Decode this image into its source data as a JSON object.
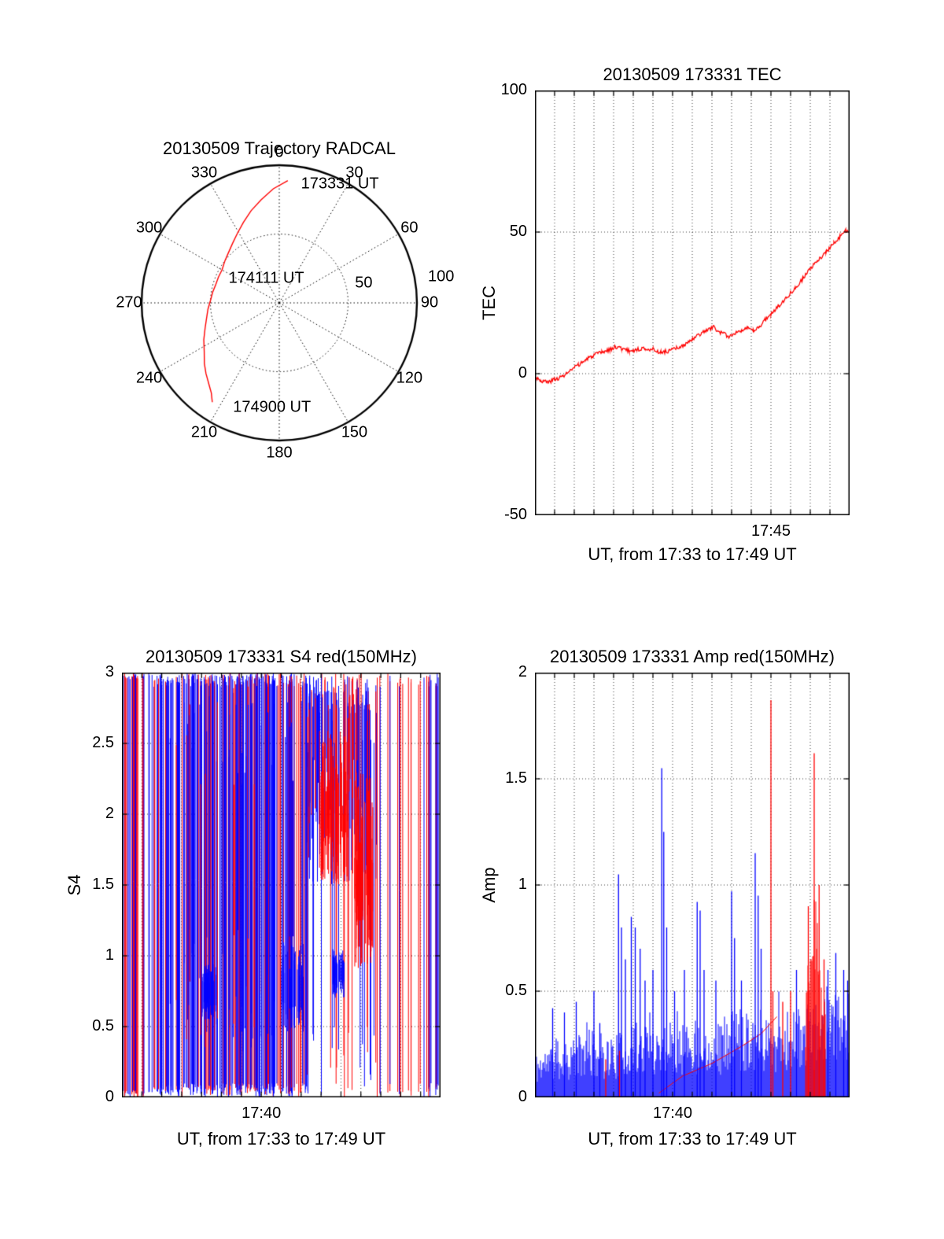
{
  "chart_data": [
    {
      "type": "polar-line",
      "title": "20130509 Trajectory RADCAL",
      "azimuth_ticks_deg": [
        0,
        30,
        60,
        90,
        120,
        150,
        180,
        210,
        240,
        270,
        300,
        330
      ],
      "radial_ticks": [
        {
          "value": 50,
          "label": "50",
          "label_az_deg": 77,
          "label_r": 63
        },
        {
          "value": 100,
          "label": "100",
          "label_az_deg": 81,
          "label_r": 119
        }
      ],
      "rmax": 100,
      "line_color": "#ff0000",
      "annotations": [
        {
          "text": "173331 UT",
          "az_deg": 27,
          "r": 97
        },
        {
          "text": "174111 UT",
          "az_deg": 332,
          "r": 20
        },
        {
          "text": "174900 UT",
          "az_deg": 184,
          "r": 76
        }
      ],
      "track_az_r": [
        [
          4,
          89
        ],
        [
          357,
          83
        ],
        [
          350,
          76
        ],
        [
          343,
          70
        ],
        [
          336,
          64
        ],
        [
          329,
          59
        ],
        [
          322,
          55
        ],
        [
          315,
          52
        ],
        [
          308,
          50
        ],
        [
          300,
          48
        ],
        [
          293,
          48
        ],
        [
          286,
          48
        ],
        [
          279,
          49
        ],
        [
          272,
          50
        ],
        [
          265,
          52
        ],
        [
          258,
          54
        ],
        [
          251,
          57
        ],
        [
          244,
          61
        ],
        [
          237,
          65
        ],
        [
          231,
          70
        ],
        [
          226,
          74
        ],
        [
          221,
          78
        ],
        [
          217,
          82
        ],
        [
          214,
          87
        ]
      ]
    },
    {
      "type": "line",
      "title": "20130509 173331 TEC",
      "ylabel": "TEC",
      "xlabel": "UT, from 17:33 to 17:49 UT",
      "ylim": [
        -50,
        100
      ],
      "yticks": [
        100,
        50,
        0,
        -50
      ],
      "grid_y": [
        0,
        50
      ],
      "x_start": "17:33",
      "x_end": "17:49",
      "x_range_minutes": 16,
      "xticks": [
        {
          "minute": 12,
          "label": "17:45"
        }
      ],
      "line_color": "#ff0000",
      "noise": 0.7,
      "seed": 3,
      "series_t_v": [
        [
          0,
          -1
        ],
        [
          0.3,
          -2.5
        ],
        [
          0.7,
          -3
        ],
        [
          1,
          -2
        ],
        [
          1.4,
          -1
        ],
        [
          1.8,
          1
        ],
        [
          2.2,
          3
        ],
        [
          2.6,
          5
        ],
        [
          3,
          6.5
        ],
        [
          3.4,
          7.5
        ],
        [
          3.8,
          8.5
        ],
        [
          4.1,
          9.5
        ],
        [
          4.4,
          9
        ],
        [
          4.8,
          8
        ],
        [
          5.2,
          8.5
        ],
        [
          5.6,
          9
        ],
        [
          6,
          8.5
        ],
        [
          6.4,
          7.5
        ],
        [
          6.8,
          8
        ],
        [
          7.2,
          9
        ],
        [
          7.6,
          10
        ],
        [
          8,
          12
        ],
        [
          8.4,
          14
        ],
        [
          8.8,
          15.5
        ],
        [
          9.1,
          16.5
        ],
        [
          9.3,
          15
        ],
        [
          9.6,
          14
        ],
        [
          9.9,
          13
        ],
        [
          10.2,
          14.5
        ],
        [
          10.5,
          15.5
        ],
        [
          10.8,
          16
        ],
        [
          11.1,
          15
        ],
        [
          11.4,
          16.5
        ],
        [
          11.7,
          19
        ],
        [
          12,
          21
        ],
        [
          12.4,
          24
        ],
        [
          12.8,
          27
        ],
        [
          13.2,
          30
        ],
        [
          13.6,
          33.5
        ],
        [
          14,
          37
        ],
        [
          14.4,
          40
        ],
        [
          14.8,
          43
        ],
        [
          15.2,
          46
        ],
        [
          15.5,
          48.5
        ],
        [
          15.8,
          50.5
        ],
        [
          16,
          50
        ]
      ]
    },
    {
      "type": "vertical-lines",
      "title": "20130509 173331 S4 red(150MHz)",
      "ylabel": "S4",
      "xlabel": "UT, from 17:33 to 17:49 UT",
      "ylim": [
        0,
        3
      ],
      "yticks": [
        3,
        2.5,
        2,
        1.5,
        1,
        0.5,
        0
      ],
      "grid_y": [
        0.5,
        1,
        1.5,
        2,
        2.5
      ],
      "x_start": "17:33",
      "x_end": "17:49",
      "x_range_minutes": 16,
      "xticks": [
        {
          "minute": 7,
          "label": "17:40"
        }
      ],
      "colors": {
        "red": "#ff0000",
        "blue": "#0000ff"
      },
      "seed": 7,
      "segments": [
        {
          "x0": 0.0,
          "x1": 0.06,
          "count": 26,
          "red": 0.6,
          "ymin": [
            0,
            0.05
          ],
          "ymax": [
            2.95,
            3
          ]
        },
        {
          "x0": 0.06,
          "x1": 0.1,
          "count": 10,
          "red": 0.2,
          "ymin": [
            0,
            0.05
          ],
          "ymax": [
            2.95,
            3
          ]
        },
        {
          "x0": 0.1,
          "x1": 0.34,
          "count": 110,
          "red": 0.32,
          "ymin": [
            0,
            0.1
          ],
          "ymax": [
            2.9,
            3
          ]
        },
        {
          "x0": 0.34,
          "x1": 0.58,
          "count": 120,
          "red": 0.28,
          "ymin": [
            0,
            0.1
          ],
          "ymax": [
            2.9,
            3
          ]
        },
        {
          "x0": 0.14,
          "x1": 0.58,
          "count": 50,
          "red": 0.25,
          "ymin": [
            0.3,
            1.2
          ],
          "ymax": [
            2.2,
            3
          ]
        },
        {
          "x0": 0.58,
          "x1": 0.8,
          "count": 100,
          "red": 0.3,
          "ymin": [
            1.5,
            2.4
          ],
          "ymax": [
            2.7,
            3
          ]
        },
        {
          "x0": 0.58,
          "x1": 0.8,
          "count": 26,
          "red": 0.55,
          "ymin": [
            0,
            0.5
          ],
          "ymax": [
            2.4,
            3
          ]
        },
        {
          "x0": 0.62,
          "x1": 0.71,
          "count": 70,
          "red": 1,
          "ymin": [
            1.5,
            1.9
          ],
          "ymax": [
            2.0,
            2.6
          ]
        },
        {
          "x0": 0.73,
          "x1": 0.79,
          "count": 60,
          "red": 1,
          "ymin": [
            0.9,
            1.5
          ],
          "ymax": [
            1.6,
            2.3
          ]
        },
        {
          "x0": 0.8,
          "x1": 0.96,
          "count": 18,
          "red": 0.8,
          "ymin": [
            0,
            0.1
          ],
          "ymax": [
            2.9,
            3
          ]
        },
        {
          "x0": 0.96,
          "x1": 1.0,
          "count": 12,
          "red": 0.35,
          "ymin": [
            0,
            0.1
          ],
          "ymax": [
            2.9,
            3
          ]
        },
        {
          "x0": 0.25,
          "x1": 0.3,
          "count": 40,
          "red": 0,
          "ymin": [
            0.55,
            0.7
          ],
          "ymax": [
            0.8,
            0.95
          ]
        },
        {
          "x0": 0.5,
          "x1": 0.57,
          "count": 40,
          "red": 0,
          "ymin": [
            0.45,
            0.7
          ],
          "ymax": [
            0.85,
            1.1
          ]
        },
        {
          "x0": 0.66,
          "x1": 0.7,
          "count": 30,
          "red": 0,
          "ymin": [
            0.7,
            0.85
          ],
          "ymax": [
            0.9,
            1.05
          ]
        }
      ]
    },
    {
      "type": "spike-series",
      "title": "20130509 173331 Amp red(150MHz)",
      "ylabel": "Amp",
      "xlabel": "UT, from 17:33 to 17:49 UT",
      "ylim": [
        0,
        2
      ],
      "yticks": [
        2,
        1.5,
        1,
        0.5,
        0
      ],
      "grid_y": [
        0.5,
        1,
        1.5
      ],
      "x_start": "17:33",
      "x_end": "17:49",
      "x_range_minutes": 16,
      "xticks": [
        {
          "minute": 7,
          "label": "17:40"
        }
      ],
      "colors": {
        "red": "#ff0000",
        "blue": "#0000ff"
      },
      "seed": 11,
      "baseline": {
        "color": "blue",
        "envelope_t": [
          0,
          1,
          2,
          3,
          4,
          5,
          6,
          7,
          8,
          9,
          10,
          11,
          12,
          13,
          14,
          15,
          16
        ],
        "envelope_v": [
          0.2,
          0.25,
          0.28,
          0.3,
          0.28,
          0.32,
          0.35,
          0.33,
          0.36,
          0.32,
          0.4,
          0.42,
          0.38,
          0.4,
          0.42,
          0.45,
          0.5
        ]
      },
      "red_trace": [
        [
          6.3,
          0.02
        ],
        [
          7.5,
          0.1
        ],
        [
          9,
          0.16
        ],
        [
          10.5,
          0.24
        ],
        [
          11.5,
          0.3
        ],
        [
          12.3,
          0.38
        ]
      ],
      "red_mass": {
        "t0": 13.75,
        "t1": 14.75,
        "center": 14.2,
        "width": 0.3,
        "base": 0.5,
        "peak": 1.35
      },
      "spikes": [
        [
          0.9,
          0.42,
          "b"
        ],
        [
          1.5,
          0.4,
          "b"
        ],
        [
          2.1,
          0.45,
          "b"
        ],
        [
          3,
          0.5,
          "b"
        ],
        [
          3.3,
          0.35,
          "b"
        ],
        [
          3.6,
          0.18,
          "r"
        ],
        [
          4.25,
          1.05,
          "b"
        ],
        [
          4.3,
          0.22,
          "r"
        ],
        [
          4.4,
          0.8,
          "b"
        ],
        [
          4.6,
          0.65,
          "b"
        ],
        [
          4.9,
          0.85,
          "b"
        ],
        [
          5.1,
          0.8,
          "b"
        ],
        [
          5.35,
          0.7,
          "b"
        ],
        [
          5.6,
          0.55,
          "b"
        ],
        [
          6,
          0.6,
          "b"
        ],
        [
          6.45,
          1.55,
          "b"
        ],
        [
          6.55,
          1.25,
          "b"
        ],
        [
          6.7,
          0.8,
          "b"
        ],
        [
          7.1,
          0.5,
          "b"
        ],
        [
          7.6,
          0.6,
          "b"
        ],
        [
          8.25,
          0.92,
          "b"
        ],
        [
          8.4,
          0.88,
          "b"
        ],
        [
          8.6,
          0.6,
          "b"
        ],
        [
          9.2,
          0.55,
          "b"
        ],
        [
          10,
          0.97,
          "b"
        ],
        [
          10.15,
          0.75,
          "b"
        ],
        [
          10.5,
          0.55,
          "b"
        ],
        [
          11.2,
          1.15,
          "b"
        ],
        [
          11.35,
          0.95,
          "b"
        ],
        [
          11.5,
          0.7,
          "b"
        ],
        [
          12,
          1.87,
          "r"
        ],
        [
          12.1,
          0.5,
          "r"
        ],
        [
          12.6,
          0.45,
          "r"
        ],
        [
          13,
          0.5,
          "r"
        ],
        [
          13.3,
          0.6,
          "b"
        ],
        [
          13.9,
          0.9,
          "r"
        ],
        [
          14.2,
          1.62,
          "r"
        ],
        [
          14.45,
          1.0,
          "r"
        ],
        [
          14.7,
          0.65,
          "r"
        ],
        [
          14.9,
          0.6,
          "b"
        ],
        [
          15.3,
          0.68,
          "b"
        ],
        [
          15.7,
          0.6,
          "b"
        ],
        [
          15.9,
          0.55,
          "b"
        ]
      ]
    }
  ]
}
